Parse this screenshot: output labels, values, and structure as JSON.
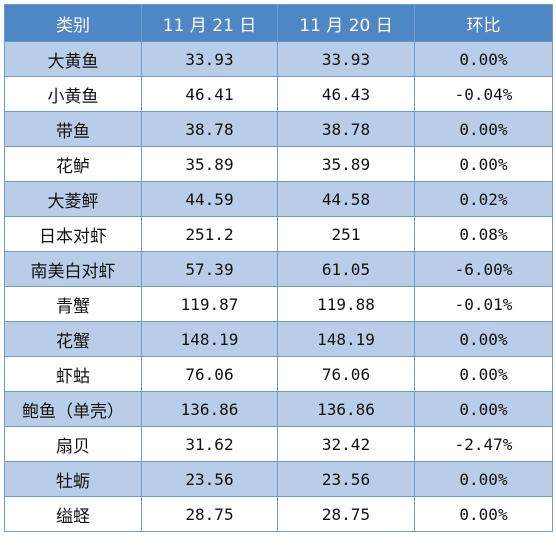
{
  "colors": {
    "header_bg": "#4f86c6",
    "header_text": "#ffffff",
    "band_row": "#b9cde8",
    "plain_row": "#ffffff",
    "border": "#6f9ad0"
  },
  "table": {
    "headers": [
      "类别",
      "11 月 21 日",
      "11 月 20 日",
      "环比"
    ],
    "rows": [
      [
        "大黄鱼",
        "33.93",
        "33.93",
        "0.00%"
      ],
      [
        "小黄鱼",
        "46.41",
        "46.43",
        "-0.04%"
      ],
      [
        "带鱼",
        "38.78",
        "38.78",
        "0.00%"
      ],
      [
        "花鲈",
        "35.89",
        "35.89",
        "0.00%"
      ],
      [
        "大菱鲆",
        "44.59",
        "44.58",
        "0.02%"
      ],
      [
        "日本对虾",
        "251.2",
        "251",
        "0.08%"
      ],
      [
        "南美白对虾",
        "57.39",
        "61.05",
        "-6.00%"
      ],
      [
        "青蟹",
        "119.87",
        "119.88",
        "-0.01%"
      ],
      [
        "花蟹",
        "148.19",
        "148.19",
        "0.00%"
      ],
      [
        "虾蛄",
        "76.06",
        "76.06",
        "0.00%"
      ],
      [
        "鲍鱼（单壳）",
        "136.86",
        "136.86",
        "0.00%"
      ],
      [
        "扇贝",
        "31.62",
        "32.42",
        "-2.47%"
      ],
      [
        "牡蛎",
        "23.56",
        "23.56",
        "0.00%"
      ],
      [
        "缢蛏",
        "28.75",
        "28.75",
        "0.00%"
      ]
    ]
  }
}
